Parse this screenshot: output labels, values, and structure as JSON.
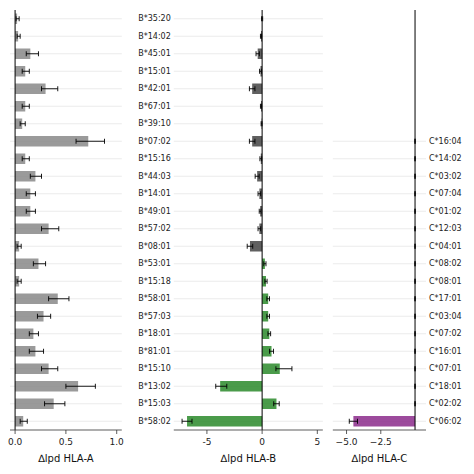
{
  "chart_data": [
    {
      "type": "bar",
      "orientation": "horizontal",
      "grid": true,
      "xlabel": "∆lpd HLA-A",
      "categories": [
        null,
        null,
        null,
        null,
        null,
        null,
        null,
        null,
        null,
        null,
        null,
        null,
        null,
        null,
        null,
        null,
        null,
        null,
        null,
        null,
        null,
        null,
        null,
        null
      ],
      "values": [
        0.02,
        0.03,
        0.15,
        0.1,
        0.3,
        0.1,
        0.07,
        0.72,
        0.1,
        0.2,
        0.15,
        0.15,
        0.33,
        0.04,
        0.23,
        0.04,
        0.42,
        0.28,
        0.18,
        0.2,
        0.33,
        0.62,
        0.38,
        0.08
      ],
      "error_low": [
        0.01,
        0.01,
        0.04,
        0.03,
        0.04,
        0.03,
        0.02,
        0.12,
        0.03,
        0.05,
        0.04,
        0.04,
        0.07,
        0.02,
        0.05,
        0.02,
        0.09,
        0.06,
        0.04,
        0.06,
        0.07,
        0.12,
        0.09,
        0.03
      ],
      "error_high": [
        0.02,
        0.02,
        0.08,
        0.04,
        0.12,
        0.04,
        0.03,
        0.16,
        0.04,
        0.06,
        0.05,
        0.05,
        0.1,
        0.02,
        0.07,
        0.02,
        0.11,
        0.07,
        0.05,
        0.08,
        0.09,
        0.17,
        0.11,
        0.04
      ],
      "color": "#888888",
      "xlim": [
        -0.05,
        1.05
      ],
      "xticks": [
        {
          "value": 0.0,
          "label": "0.0"
        },
        {
          "value": 0.5,
          "label": "0.5"
        },
        {
          "value": 1.0,
          "label": "1.0"
        }
      ]
    },
    {
      "type": "bar",
      "orientation": "horizontal",
      "grid": true,
      "xlabel": "∆lpd HLA-B",
      "categories": [
        "B*35:20",
        "B*14:02",
        "B*45:01",
        "B*15:01",
        "B*42:01",
        "B*67:01",
        "B*39:10",
        "B*07:02",
        "B*15:16",
        "B*44:03",
        "B*14:01",
        "B*49:01",
        "B*57:02",
        "B*08:01",
        "B*53:01",
        "B*15:18",
        "B*58:01",
        "B*57:03",
        "B*18:01",
        "B*81:01",
        "B*15:10",
        "B*13:02",
        "B*15:03",
        "B*58:02"
      ],
      "values": [
        0.0,
        -0.1,
        -0.4,
        -0.15,
        -0.9,
        -0.1,
        -0.05,
        -0.9,
        -0.12,
        -0.45,
        -0.25,
        -0.18,
        -0.25,
        -1.1,
        0.25,
        0.35,
        0.55,
        0.55,
        0.65,
        0.85,
        1.6,
        -3.8,
        1.3,
        -6.8
      ],
      "error_low": [
        0.05,
        0.05,
        0.15,
        0.08,
        0.25,
        0.05,
        0.04,
        0.25,
        0.08,
        0.18,
        0.12,
        0.08,
        0.12,
        0.25,
        0.1,
        0.1,
        0.12,
        0.12,
        0.12,
        0.18,
        0.35,
        0.4,
        0.25,
        0.45
      ],
      "error_high": [
        0.05,
        0.05,
        0.15,
        0.08,
        0.25,
        0.05,
        0.04,
        0.25,
        0.08,
        0.18,
        0.12,
        0.08,
        0.12,
        0.25,
        0.1,
        0.1,
        0.12,
        0.12,
        0.12,
        0.18,
        1.1,
        0.6,
        0.25,
        0.45
      ],
      "colors": [
        "#444444",
        "#444444",
        "#444444",
        "#444444",
        "#444444",
        "#444444",
        "#444444",
        "#444444",
        "#444444",
        "#444444",
        "#444444",
        "#444444",
        "#444444",
        "#444444",
        "#2a8a2a",
        "#2a8a2a",
        "#2a8a2a",
        "#2a8a2a",
        "#2a8a2a",
        "#2a8a2a",
        "#2a8a2a",
        "#2a8a2a",
        "#2a8a2a",
        "#2a8a2a"
      ],
      "xlim": [
        -8.0,
        5.5
      ],
      "xticks": [
        -5,
        0,
        5
      ]
    },
    {
      "type": "bar",
      "orientation": "horizontal",
      "grid": true,
      "xlabel": "∆lpd HLA-C",
      "categories": [
        "C*16:04",
        "C*14:02",
        "C*03:02",
        "C*07:04",
        "C*01:02",
        "C*12:03",
        "C*04:01",
        "C*08:02",
        "C*08:01",
        "C*17:01",
        "C*03:04",
        "C*07:02",
        "C*16:01",
        "C*07:01",
        "C*18:01",
        "C*02:02",
        "C*06:02"
      ],
      "values": [
        0.0,
        0.0,
        0.0,
        0.0,
        0.0,
        0.0,
        0.0,
        0.0,
        0.0,
        0.0,
        0.0,
        0.0,
        0.0,
        0.0,
        0.0,
        0.0,
        -4.5
      ],
      "error_low": [
        0.02,
        0.02,
        0.02,
        0.02,
        0.02,
        0.02,
        0.02,
        0.02,
        0.02,
        0.02,
        0.02,
        0.02,
        0.02,
        0.02,
        0.02,
        0.02,
        0.3
      ],
      "error_high": [
        0.02,
        0.02,
        0.02,
        0.02,
        0.02,
        0.02,
        0.02,
        0.02,
        0.02,
        0.02,
        0.02,
        0.02,
        0.02,
        0.02,
        0.02,
        0.02,
        0.3
      ],
      "colors": [
        "#444444",
        "#444444",
        "#444444",
        "#444444",
        "#444444",
        "#444444",
        "#444444",
        "#444444",
        "#444444",
        "#444444",
        "#444444",
        "#444444",
        "#444444",
        "#444444",
        "#444444",
        "#444444",
        "#8b2a8b"
      ],
      "xlim": [
        -6.0,
        0.8
      ],
      "xticks": [
        {
          "value": -5.0,
          "label": "−5.0"
        },
        {
          "value": -2.5,
          "label": "−2.5"
        }
      ]
    }
  ]
}
